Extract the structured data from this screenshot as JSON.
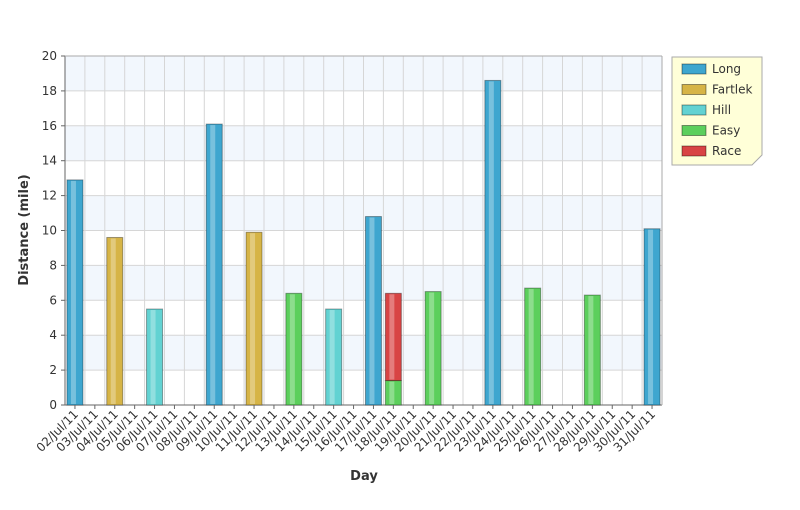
{
  "chart_data": {
    "type": "bar",
    "stacked": true,
    "x_label": "Day",
    "y_label": "Distance (mile)",
    "categories": [
      "02/Jul/11",
      "03/Jul/11",
      "04/Jul/11",
      "05/Jul/11",
      "06/Jul/11",
      "07/Jul/11",
      "08/Jul/11",
      "09/Jul/11",
      "10/Jul/11",
      "11/Jul/11",
      "12/Jul/11",
      "13/Jul/11",
      "14/Jul/11",
      "15/Jul/11",
      "16/Jul/11",
      "17/Jul/11",
      "18/Jul/11",
      "19/Jul/11",
      "20/Jul/11",
      "21/Jul/11",
      "22/Jul/11",
      "23/Jul/11",
      "24/Jul/11",
      "25/Jul/11",
      "26/Jul/11",
      "27/Jul/11",
      "28/Jul/11",
      "29/Jul/11",
      "30/Jul/11",
      "31/Jul/11"
    ],
    "series": [
      {
        "name": "Long",
        "color": "#3ea6cf",
        "values": [
          12.9,
          null,
          null,
          null,
          null,
          null,
          null,
          16.1,
          null,
          null,
          null,
          null,
          null,
          null,
          null,
          10.8,
          null,
          null,
          null,
          null,
          null,
          18.6,
          null,
          null,
          null,
          null,
          null,
          null,
          null,
          10.1
        ]
      },
      {
        "name": "Fartlek",
        "color": "#d6b446",
        "values": [
          null,
          null,
          9.6,
          null,
          null,
          null,
          null,
          null,
          null,
          9.9,
          null,
          null,
          null,
          null,
          null,
          null,
          null,
          null,
          null,
          null,
          null,
          null,
          null,
          null,
          null,
          null,
          null,
          null,
          null,
          null
        ]
      },
      {
        "name": "Hill",
        "color": "#62d2d2",
        "values": [
          null,
          null,
          null,
          null,
          5.5,
          null,
          null,
          null,
          null,
          null,
          null,
          null,
          null,
          5.5,
          null,
          null,
          null,
          null,
          null,
          null,
          null,
          null,
          null,
          null,
          null,
          null,
          null,
          null,
          null,
          null
        ]
      },
      {
        "name": "Easy",
        "color": "#5ccf5c",
        "values": [
          null,
          null,
          null,
          null,
          null,
          null,
          null,
          null,
          null,
          null,
          null,
          6.4,
          null,
          null,
          null,
          null,
          1.4,
          null,
          6.5,
          null,
          null,
          null,
          null,
          6.7,
          null,
          null,
          6.3,
          null,
          null,
          null
        ]
      },
      {
        "name": "Race",
        "color": "#d84444",
        "values": [
          null,
          null,
          null,
          null,
          null,
          null,
          null,
          null,
          null,
          null,
          null,
          null,
          null,
          null,
          null,
          null,
          5.0,
          null,
          null,
          null,
          null,
          null,
          null,
          null,
          null,
          null,
          null,
          null,
          null,
          null
        ]
      }
    ],
    "ylim": [
      0,
      20
    ],
    "yticks": [
      0,
      2,
      4,
      6,
      8,
      10,
      12,
      14,
      16,
      18,
      20
    ],
    "grid": true,
    "legend": "top-right"
  }
}
